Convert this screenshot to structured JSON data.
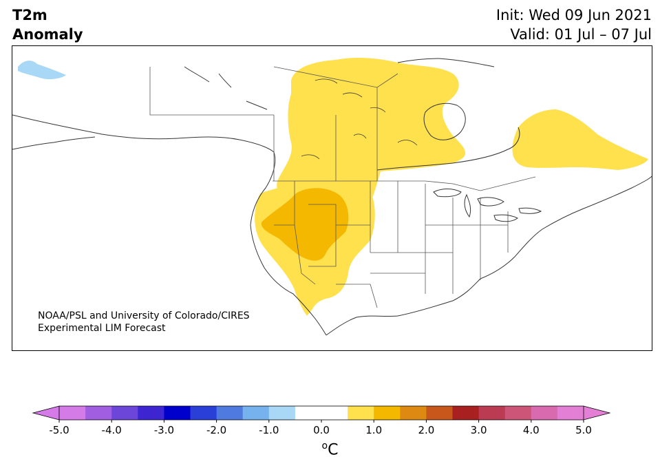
{
  "title": {
    "left_line1": "T2m",
    "left_line2": "Anomaly",
    "init": "Init: Wed 09 Jun 2021",
    "valid": "Valid: 01 Jul – 07 Jul"
  },
  "credit": {
    "line1": "NOAA/PSL and University of Colorado/CIRES",
    "line2": "Experimental LIM Forecast"
  },
  "colorbar": {
    "unit_label": "C",
    "unit_super": "o",
    "tick_labels": [
      "-5.0",
      "-4.0",
      "-3.0",
      "-2.0",
      "-1.0",
      "0.0",
      "1.0",
      "2.0",
      "3.0",
      "4.0",
      "5.0"
    ],
    "bin_colors": [
      "#d47be8",
      "#a15ee0",
      "#6c46d8",
      "#3d26d2",
      "#0000cd",
      "#2a3fd8",
      "#4f7be0",
      "#76b3ee",
      "#a8d8f6",
      "#ffffff",
      "#ffffff",
      "#ffe04d",
      "#f5b800",
      "#de8a12",
      "#c8571b",
      "#a8201f",
      "#bb3b52",
      "#cd5578",
      "#d96ab0",
      "#e47fd6"
    ],
    "extend_low_color": "#d47be8",
    "extend_high_color": "#e47fd6"
  },
  "map": {
    "region": "North America",
    "variable": "2 m temperature anomaly",
    "anomaly_colors": {
      "plus_0_5_to_1": "#ffe04d",
      "plus_1_to_1_5": "#f5b800",
      "minus_0_5_to_1": "#a8d8f6"
    }
  }
}
